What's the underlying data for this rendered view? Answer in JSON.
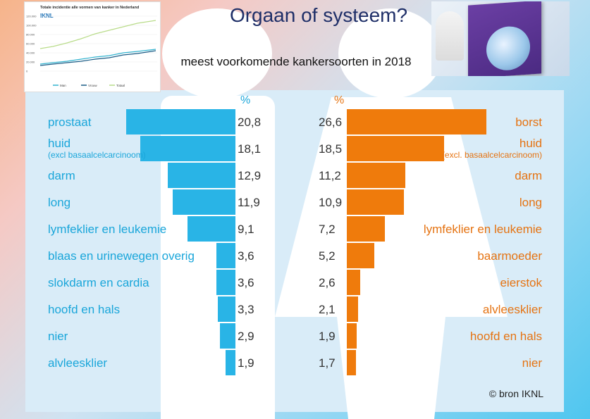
{
  "title": "Orgaan of systeem?",
  "subtitle": "meest voorkomende kankersoorten in 2018",
  "source": "© bron IKNL",
  "percent_symbol": "%",
  "colors": {
    "male": "#29b4e6",
    "female": "#ef7b0c",
    "title": "#1f2f68"
  },
  "thumbnail_chart": {
    "title": "Totale incidentie alle vormen van kanker in Nederland",
    "logo": "IKNL",
    "legend": [
      "Man",
      "Vrouw",
      "Totaal"
    ],
    "y_ticks": [
      "120.000",
      "100.000",
      "80.000",
      "60.000",
      "40.000",
      "20.000",
      "0"
    ]
  },
  "chart_data": {
    "type": "bar",
    "title": "meest voorkomende kankersoorten in 2018",
    "unit": "%",
    "series": [
      {
        "name": "man",
        "categories": [
          "prostaat",
          "huid",
          "darm",
          "long",
          "lymfeklier en leukemie",
          "blaas en urinewegen overig",
          "slokdarm en cardia",
          "hoofd en hals",
          "nier",
          "alvleesklier"
        ],
        "sublabels": [
          "",
          "(excl basaalcelcarcinoom)",
          "",
          "",
          "",
          "",
          "",
          "",
          "",
          ""
        ],
        "values": [
          20.8,
          18.1,
          12.9,
          11.9,
          9.1,
          3.6,
          3.6,
          3.3,
          2.9,
          1.9
        ],
        "value_labels": [
          "20,8",
          "18,1",
          "12,9",
          "11,9",
          "9,1",
          "3,6",
          "3,6",
          "3,3",
          "2,9",
          "1,9"
        ]
      },
      {
        "name": "vrouw",
        "categories": [
          "borst",
          "huid",
          "darm",
          "long",
          "lymfeklier en leukemie",
          "baarmoeder",
          "eierstok",
          "alvleesklier",
          "hoofd en hals",
          "nier"
        ],
        "sublabels": [
          "",
          "(excl. basaalcelcarcinoom)",
          "",
          "",
          "",
          "",
          "",
          "",
          "",
          ""
        ],
        "values": [
          26.6,
          18.5,
          11.2,
          10.9,
          7.2,
          5.2,
          2.6,
          2.1,
          1.9,
          1.7
        ],
        "value_labels": [
          "26,6",
          "18,5",
          "11,2",
          "10,9",
          "7,2",
          "5,2",
          "2,6",
          "2,1",
          "1,9",
          "1,7"
        ]
      }
    ]
  }
}
